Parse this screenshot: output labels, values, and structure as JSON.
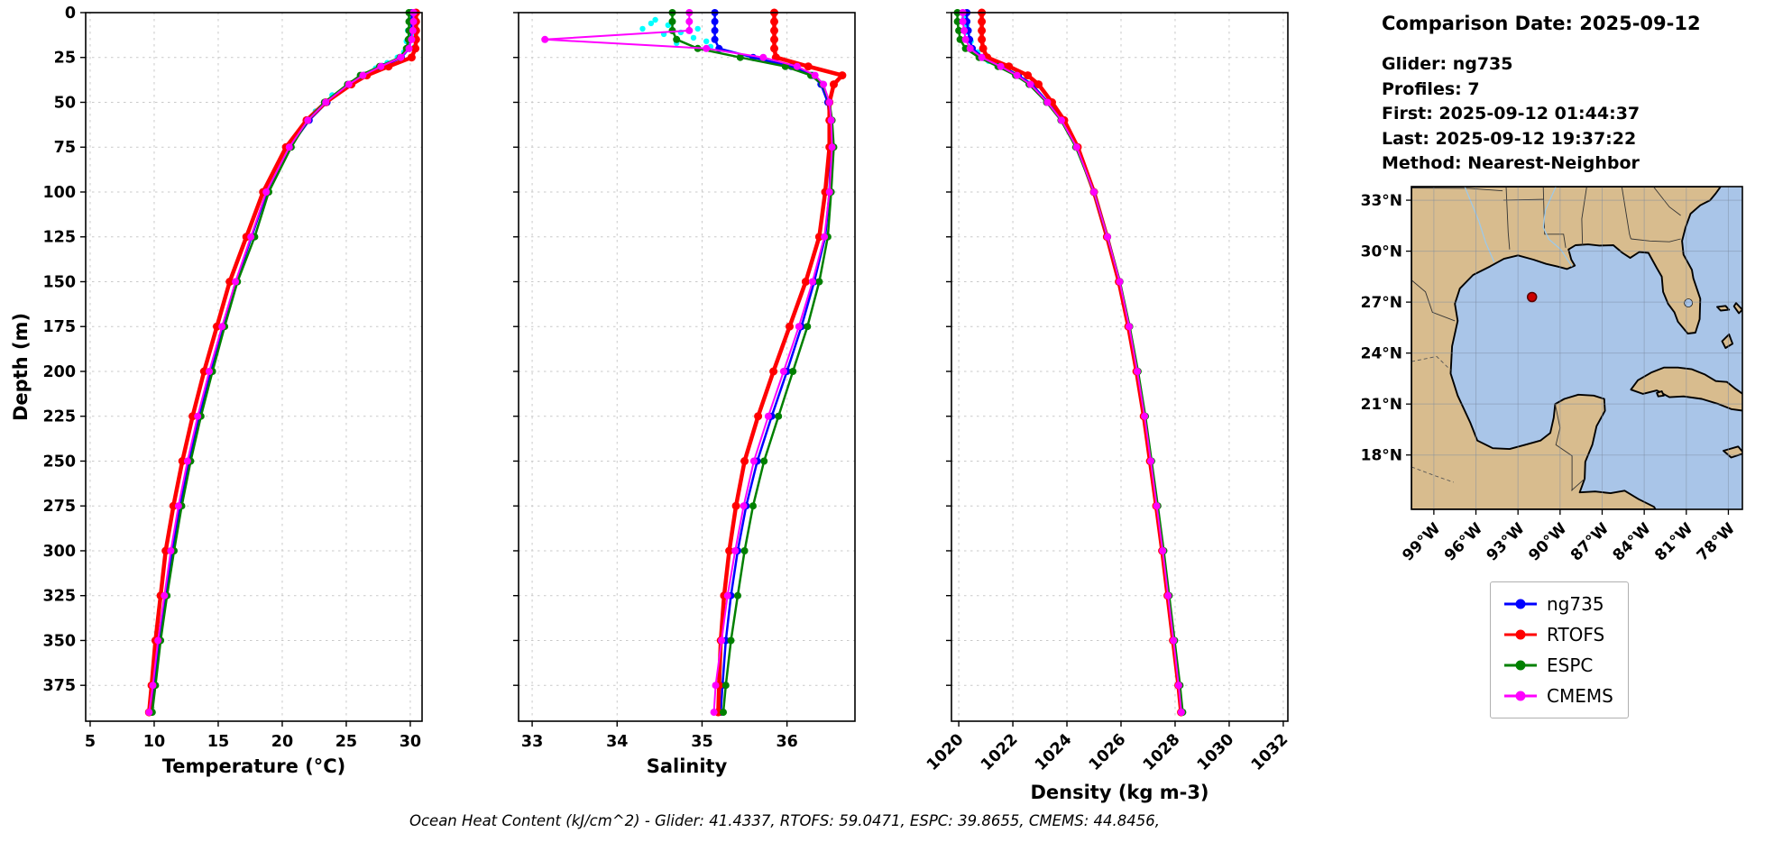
{
  "info": {
    "title": "Comparison Date: 2025-09-12",
    "glider": "Glider: ng735",
    "profiles": "Profiles: 7",
    "first": "First: 2025-09-12 01:44:37",
    "last": "Last: 2025-09-12 19:37:22",
    "method": "Method: Nearest-Neighbor"
  },
  "footer": {
    "text": "Ocean Heat Content (kJ/cm^2) - Glider: 41.4337,  RTOFS: 59.0471,  ESPC: 39.8655,  CMEMS: 44.8456,"
  },
  "legend": {
    "items": [
      {
        "label": "ng735",
        "color": "#0000ff"
      },
      {
        "label": "RTOFS",
        "color": "#ff0000"
      },
      {
        "label": "ESPC",
        "color": "#008000"
      },
      {
        "label": "CMEMS",
        "color": "#ff00ff"
      }
    ]
  },
  "chart_data": [
    {
      "id": "temperature",
      "type": "line",
      "xlabel": "Temperature (°C)",
      "ylabel": "Depth (m)",
      "xlim": [
        4.65,
        30.92
      ],
      "ylim": [
        0,
        395
      ],
      "xticks": [
        5,
        10,
        15,
        20,
        25,
        30
      ],
      "yticks": [
        0,
        25,
        50,
        75,
        100,
        125,
        150,
        175,
        200,
        225,
        250,
        275,
        300,
        325,
        350,
        375
      ],
      "depths": [
        0,
        5,
        10,
        15,
        20,
        25,
        30,
        35,
        40,
        50,
        60,
        75,
        100,
        125,
        150,
        175,
        200,
        225,
        250,
        275,
        300,
        325,
        350,
        375,
        390
      ],
      "series": [
        {
          "name": "glider-raw",
          "color": "#00ffff",
          "marker_only": true,
          "follow": "ng735",
          "points": [
            [
              30.3,
              2
            ],
            [
              30.0,
              4
            ],
            [
              30.2,
              7
            ],
            [
              29.8,
              10
            ],
            [
              30.1,
              13
            ],
            [
              29.7,
              16
            ],
            [
              30.35,
              19
            ],
            [
              29.5,
              22
            ],
            [
              29.0,
              25
            ],
            [
              28.2,
              28
            ],
            [
              27.3,
              31
            ],
            [
              26.2,
              35
            ],
            [
              25.1,
              40
            ],
            [
              23.9,
              46
            ],
            [
              22.6,
              55
            ]
          ]
        },
        {
          "name": "ng735",
          "color": "#0000ff",
          "lw": 2.5,
          "ms": 4,
          "values": [
            30.1,
            30.1,
            30.1,
            30.05,
            29.9,
            29.3,
            27.8,
            26.4,
            25.3,
            23.5,
            22.1,
            20.6,
            18.8,
            17.6,
            16.4,
            15.4,
            14.4,
            13.5,
            12.7,
            12.0,
            11.4,
            10.9,
            10.4,
            10.0,
            9.7
          ]
        },
        {
          "name": "RTOFS",
          "color": "#ff0000",
          "lw": 4.5,
          "ms": 4.5,
          "values": [
            30.45,
            30.45,
            30.45,
            30.45,
            30.4,
            30.1,
            28.3,
            26.6,
            25.4,
            23.4,
            21.9,
            20.3,
            18.5,
            17.2,
            15.9,
            14.9,
            13.9,
            13.0,
            12.2,
            11.5,
            10.9,
            10.5,
            10.1,
            9.8,
            9.6
          ]
        },
        {
          "name": "ESPC",
          "color": "#008000",
          "lw": 2.5,
          "ms": 4,
          "values": [
            29.9,
            29.9,
            29.9,
            29.85,
            29.7,
            29.2,
            27.6,
            26.1,
            25.1,
            23.3,
            22.0,
            20.7,
            18.95,
            17.85,
            16.5,
            15.5,
            14.55,
            13.65,
            12.85,
            12.15,
            11.55,
            11.0,
            10.5,
            10.1,
            9.85
          ]
        },
        {
          "name": "CMEMS",
          "color": "#ff00ff",
          "lw": 2,
          "ms": 4,
          "values": [
            30.25,
            30.25,
            30.2,
            30.1,
            29.9,
            29.25,
            27.7,
            26.3,
            25.2,
            23.4,
            22.0,
            20.55,
            18.75,
            17.55,
            16.35,
            15.3,
            14.3,
            13.4,
            12.6,
            11.9,
            11.3,
            10.8,
            10.3,
            9.9,
            9.6
          ]
        }
      ]
    },
    {
      "id": "salinity",
      "type": "line",
      "xlabel": "Salinity",
      "ylabel": "",
      "xlim": [
        32.84,
        36.8
      ],
      "ylim": [
        0,
        395
      ],
      "xticks": [
        33,
        34,
        35,
        36
      ],
      "yticks": [
        0,
        25,
        50,
        75,
        100,
        125,
        150,
        175,
        200,
        225,
        250,
        275,
        300,
        325,
        350,
        375
      ],
      "depths": [
        0,
        5,
        10,
        15,
        20,
        25,
        30,
        35,
        40,
        50,
        60,
        75,
        100,
        125,
        150,
        175,
        200,
        225,
        250,
        275,
        300,
        325,
        350,
        375,
        390
      ],
      "series": [
        {
          "name": "glider-raw",
          "color": "#00ffff",
          "marker_only": true,
          "follow": "ng735",
          "points": [
            [
              34.45,
              4
            ],
            [
              34.6,
              7
            ],
            [
              34.3,
              9
            ],
            [
              34.75,
              11
            ],
            [
              34.9,
              14
            ],
            [
              35.05,
              16
            ],
            [
              34.55,
              12
            ],
            [
              35.1,
              19
            ],
            [
              34.4,
              6
            ],
            [
              35.2,
              21
            ],
            [
              34.7,
              17
            ],
            [
              34.95,
              9
            ]
          ]
        },
        {
          "name": "ng735",
          "color": "#0000ff",
          "lw": 2.5,
          "ms": 4,
          "values": [
            35.15,
            35.15,
            35.15,
            35.15,
            35.2,
            35.6,
            36.05,
            36.3,
            36.4,
            36.48,
            36.5,
            36.52,
            36.5,
            36.45,
            36.32,
            36.17,
            36.0,
            35.82,
            35.65,
            35.52,
            35.42,
            35.34,
            35.28,
            35.24,
            35.22
          ]
        },
        {
          "name": "RTOFS",
          "color": "#ff0000",
          "lw": 4.5,
          "ms": 4.5,
          "values": [
            35.85,
            35.85,
            35.85,
            35.85,
            35.85,
            35.87,
            36.25,
            36.65,
            36.55,
            36.5,
            36.5,
            36.5,
            36.45,
            36.38,
            36.22,
            36.03,
            35.84,
            35.66,
            35.5,
            35.4,
            35.32,
            35.26,
            35.22,
            35.2,
            35.19
          ]
        },
        {
          "name": "ESPC",
          "color": "#008000",
          "lw": 2.5,
          "ms": 4,
          "values": [
            34.65,
            34.65,
            34.65,
            34.7,
            34.95,
            35.45,
            35.98,
            36.28,
            36.42,
            36.5,
            36.53,
            36.55,
            36.52,
            36.48,
            36.38,
            36.24,
            36.07,
            35.9,
            35.73,
            35.6,
            35.5,
            35.42,
            35.34,
            35.28,
            35.25
          ]
        },
        {
          "name": "CMEMS",
          "color": "#ff00ff",
          "lw": 2,
          "ms": 4,
          "values": [
            34.85,
            34.85,
            34.85,
            33.15,
            35.05,
            35.72,
            36.12,
            36.33,
            36.43,
            36.5,
            36.52,
            36.53,
            36.5,
            36.44,
            36.3,
            36.14,
            35.96,
            35.78,
            35.61,
            35.49,
            35.39,
            35.3,
            35.23,
            35.16,
            35.14
          ]
        }
      ]
    },
    {
      "id": "density",
      "type": "line",
      "xlabel": "Density (kg m-3)",
      "ylabel": "",
      "xlim": [
        1019.73,
        1032.17
      ],
      "ylim": [
        0,
        395
      ],
      "xticks": [
        1020,
        1022,
        1024,
        1026,
        1028,
        1030,
        1032
      ],
      "yticks": [
        0,
        25,
        50,
        75,
        100,
        125,
        150,
        175,
        200,
        225,
        250,
        275,
        300,
        325,
        350,
        375
      ],
      "depths": [
        0,
        5,
        10,
        15,
        20,
        25,
        30,
        35,
        40,
        50,
        60,
        75,
        100,
        125,
        150,
        175,
        200,
        225,
        250,
        275,
        300,
        325,
        350,
        375,
        390
      ],
      "series": [
        {
          "name": "glider-raw",
          "color": "#00ffff",
          "marker_only": true,
          "follow": "ng735",
          "points": [
            [
              1020.2,
              3
            ],
            [
              1020.3,
              7
            ],
            [
              1020.25,
              11
            ],
            [
              1020.45,
              16
            ],
            [
              1020.7,
              22
            ],
            [
              1021.1,
              27
            ]
          ]
        },
        {
          "name": "ng735",
          "color": "#0000ff",
          "lw": 2.5,
          "ms": 4,
          "values": [
            1020.3,
            1020.3,
            1020.35,
            1020.4,
            1020.5,
            1020.9,
            1021.6,
            1022.2,
            1022.7,
            1023.3,
            1023.8,
            1024.35,
            1025.0,
            1025.5,
            1025.95,
            1026.3,
            1026.6,
            1026.87,
            1027.1,
            1027.32,
            1027.55,
            1027.75,
            1027.95,
            1028.15,
            1028.25
          ]
        },
        {
          "name": "RTOFS",
          "color": "#ff0000",
          "lw": 4.5,
          "ms": 4.5,
          "values": [
            1020.85,
            1020.85,
            1020.85,
            1020.85,
            1020.9,
            1021.05,
            1021.85,
            1022.55,
            1022.95,
            1023.45,
            1023.9,
            1024.4,
            1025.0,
            1025.48,
            1025.92,
            1026.27,
            1026.57,
            1026.84,
            1027.07,
            1027.3,
            1027.52,
            1027.72,
            1027.92,
            1028.12,
            1028.22
          ]
        },
        {
          "name": "ESPC",
          "color": "#008000",
          "lw": 2.5,
          "ms": 4,
          "values": [
            1019.95,
            1019.95,
            1020.0,
            1020.05,
            1020.25,
            1020.75,
            1021.45,
            1022.1,
            1022.6,
            1023.25,
            1023.78,
            1024.33,
            1025.0,
            1025.5,
            1025.96,
            1026.32,
            1026.63,
            1026.9,
            1027.13,
            1027.36,
            1027.58,
            1027.78,
            1027.98,
            1028.18,
            1028.28
          ]
        },
        {
          "name": "CMEMS",
          "color": "#ff00ff",
          "lw": 2,
          "ms": 4,
          "values": [
            1020.15,
            1020.15,
            1020.2,
            1020.25,
            1020.42,
            1020.85,
            1021.55,
            1022.15,
            1022.65,
            1023.28,
            1023.8,
            1024.36,
            1025.0,
            1025.5,
            1025.95,
            1026.3,
            1026.6,
            1026.87,
            1027.1,
            1027.32,
            1027.54,
            1027.74,
            1027.94,
            1028.13,
            1028.23
          ]
        }
      ]
    }
  ],
  "map": {
    "lat_labels": [
      "33°N",
      "30°N",
      "27°N",
      "24°N",
      "21°N",
      "18°N"
    ],
    "lat_values": [
      33,
      30,
      27,
      24,
      21,
      18
    ],
    "lon_labels": [
      "99°W",
      "96°W",
      "93°W",
      "90°W",
      "87°W",
      "84°W",
      "81°W",
      "78°W"
    ],
    "lon_values": [
      -99,
      -96,
      -93,
      -90,
      -87,
      -84,
      -81,
      -78
    ],
    "extent": {
      "lon_min": -100.6,
      "lon_max": -77.0,
      "lat_min": 14.8,
      "lat_max": 33.8
    },
    "glider_marker": {
      "lon": -92.0,
      "lat": 27.3,
      "color": "#cc0000"
    },
    "colors": {
      "water": "#a9c5e8",
      "land": "#d8bc8e",
      "coast": "#000000"
    }
  }
}
